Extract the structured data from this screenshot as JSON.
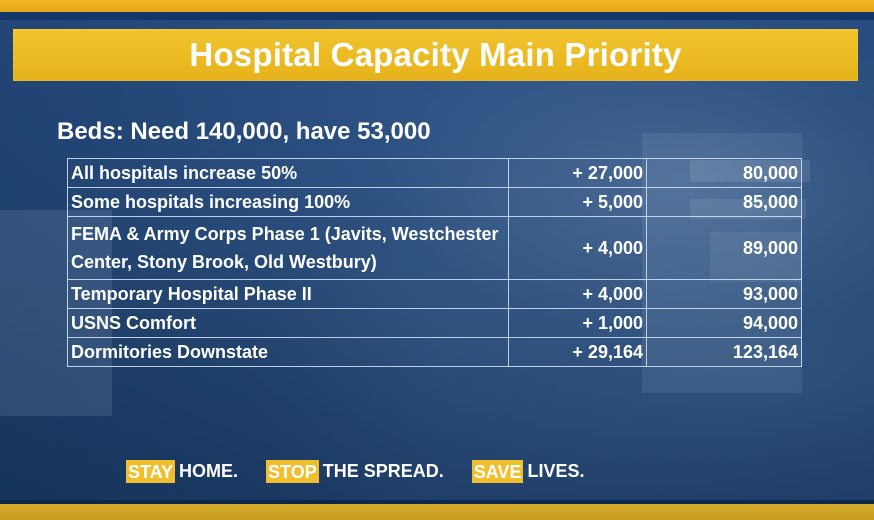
{
  "slide": {
    "title": "Hospital Capacity Main Priority",
    "subtitle": "Beds: Need 140,000, have 53,000",
    "rows": [
      {
        "label": "All hospitals increase 50%",
        "change": "+ 27,000",
        "total": "80,000"
      },
      {
        "label": "Some hospitals increasing 100%",
        "change": "+ 5,000",
        "total": "85,000"
      },
      {
        "label": "FEMA & Army Corps Phase 1 (Javits, Westchester Center, Stony Brook, Old Westbury)",
        "change": "+ 4,000",
        "total": "89,000"
      },
      {
        "label": "Temporary Hospital Phase II",
        "change": "+ 4,000",
        "total": "93,000"
      },
      {
        "label": "USNS Comfort",
        "change": "+ 1,000",
        "total": "94,000"
      },
      {
        "label": "Dormitories Downstate",
        "change": "+ 29,164",
        "total": "123,164"
      }
    ],
    "tagline": [
      {
        "highlight": "STAY",
        "rest": "HOME."
      },
      {
        "highlight": "STOP",
        "rest": "THE SPREAD."
      },
      {
        "highlight": "SAVE",
        "rest": "LIVES."
      }
    ]
  },
  "colors": {
    "background": "#1b3d6d",
    "accent": "#f0bf2d",
    "text": "#ffffff"
  }
}
